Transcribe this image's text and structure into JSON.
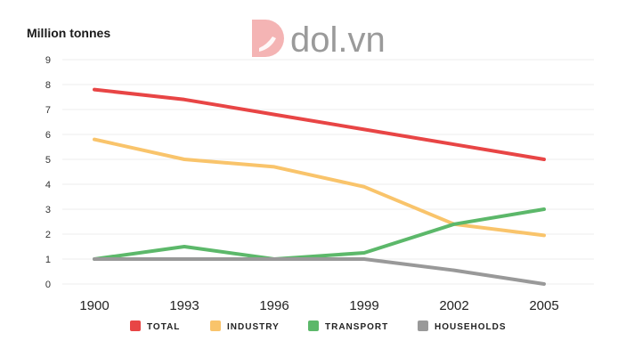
{
  "watermark": {
    "text": "dol.vn"
  },
  "chart_data": {
    "type": "line",
    "title": "",
    "ylabel": "Million tonnes",
    "xlabel": "",
    "x": [
      "1900",
      "1993",
      "1996",
      "1999",
      "2002",
      "2005"
    ],
    "ylim": [
      0,
      9
    ],
    "yticks": [
      0,
      1,
      2,
      3,
      4,
      5,
      6,
      7,
      8,
      9
    ],
    "grid": true,
    "legend_position": "bottom",
    "series": [
      {
        "key": "total",
        "name": "TOTAL",
        "color": "#e84545",
        "values": [
          7.8,
          7.4,
          6.8,
          6.2,
          5.6,
          5.0
        ]
      },
      {
        "key": "industry",
        "name": "INDUSTRY",
        "color": "#f9c46b",
        "values": [
          5.8,
          5.0,
          4.7,
          3.9,
          2.4,
          1.95
        ]
      },
      {
        "key": "transport",
        "name": "TRANSPORT",
        "color": "#5cb86a",
        "values": [
          1.0,
          1.5,
          1.0,
          1.25,
          2.4,
          3.0
        ]
      },
      {
        "key": "households",
        "name": "HOUSEHOLDS",
        "color": "#999999",
        "values": [
          1.0,
          1.0,
          1.0,
          1.0,
          0.55,
          0.0
        ]
      }
    ]
  }
}
